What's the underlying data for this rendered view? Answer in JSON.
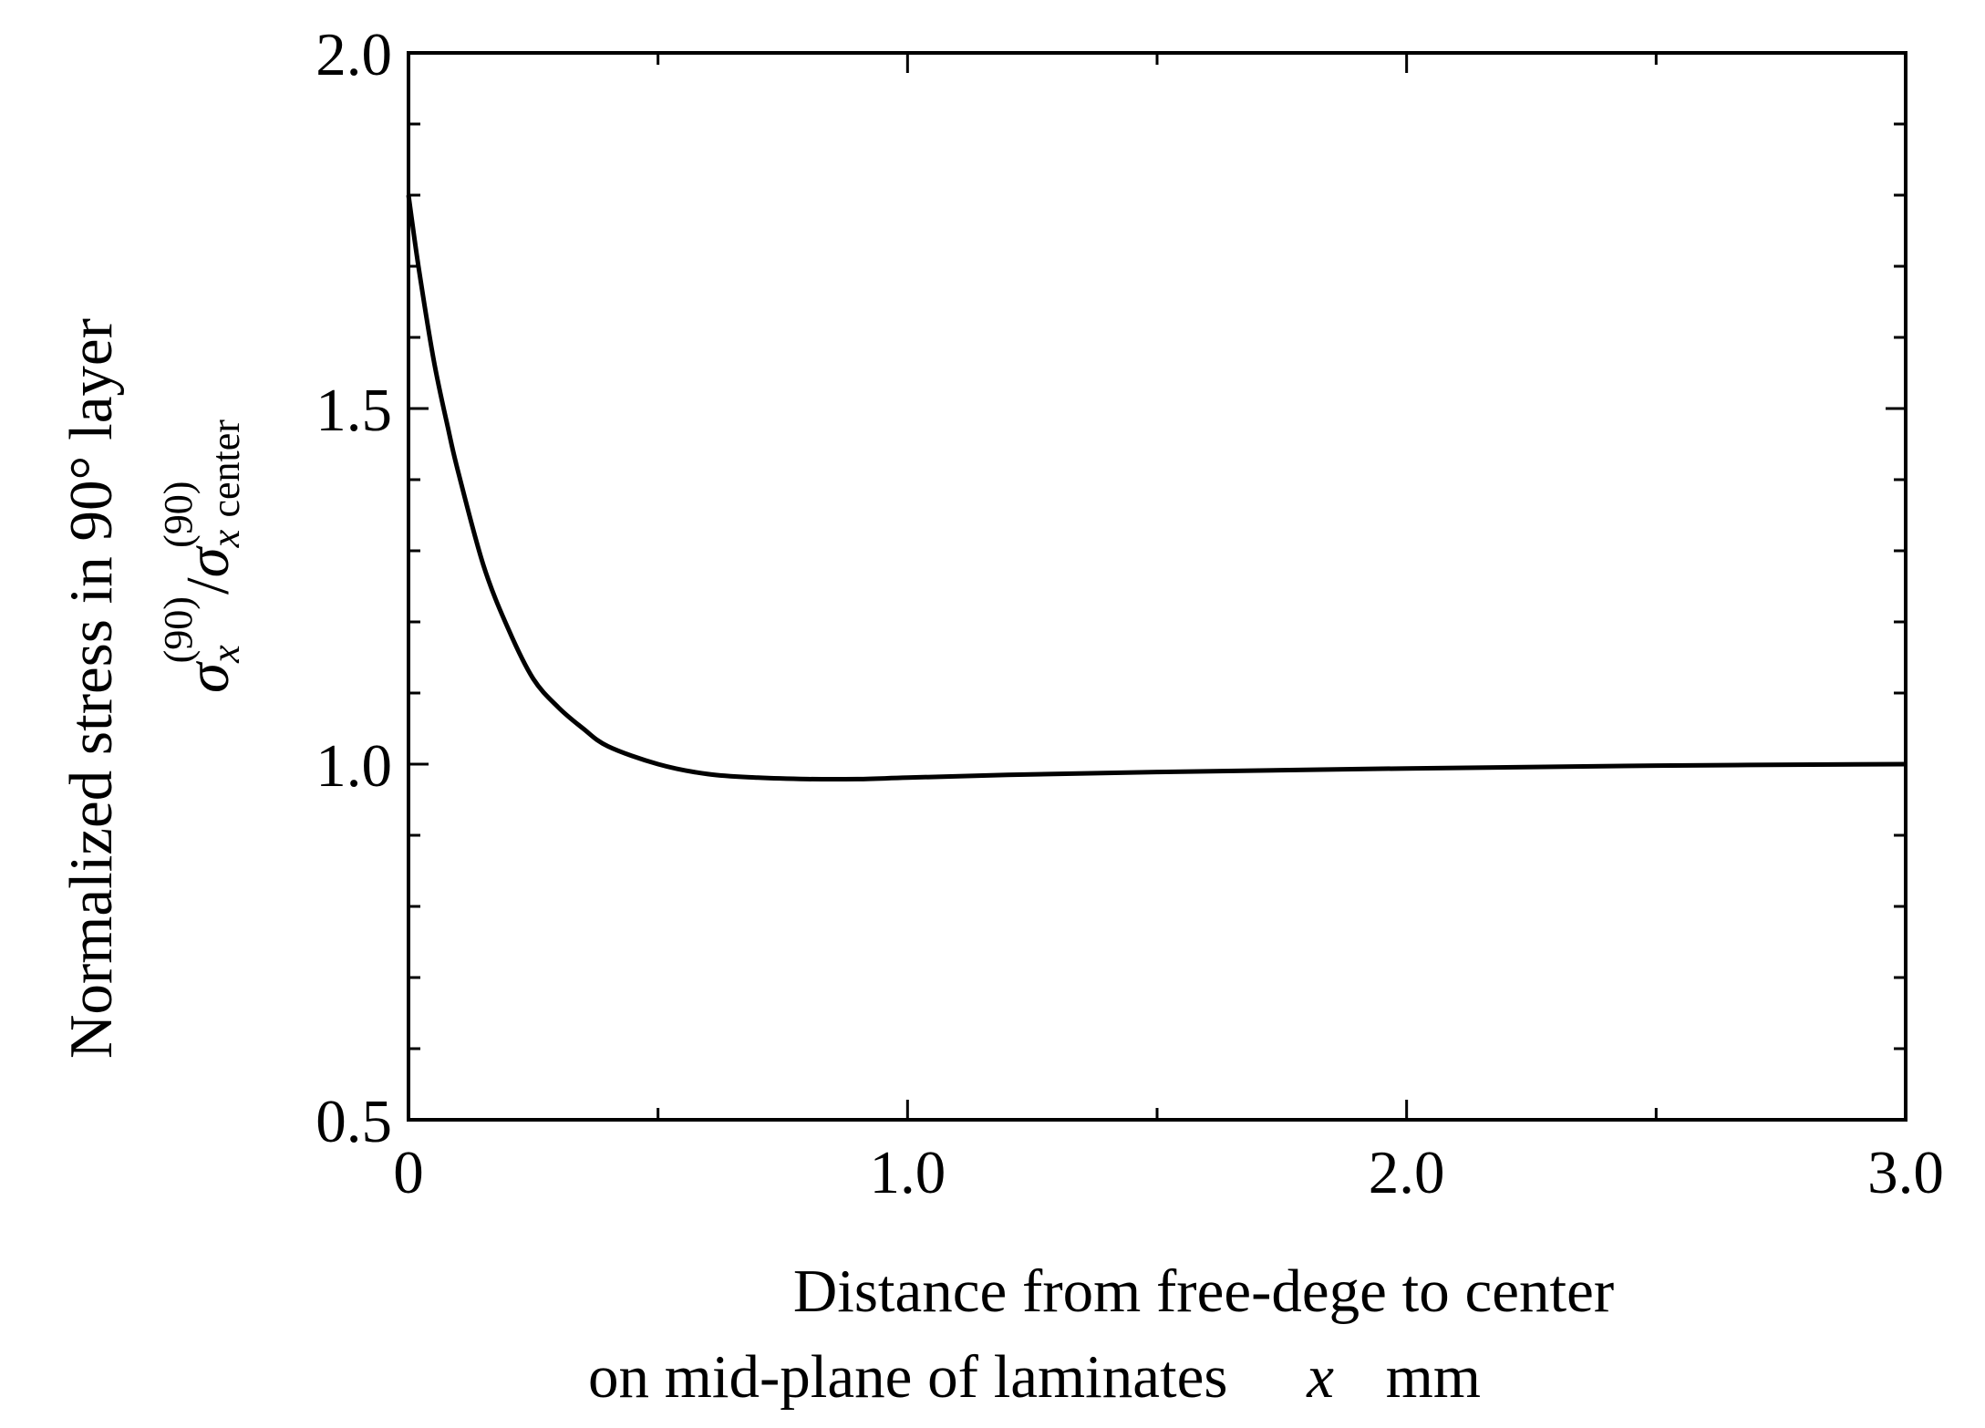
{
  "chart_data": {
    "type": "line",
    "xlim": [
      0,
      3.0
    ],
    "ylim": [
      0.5,
      2.0
    ],
    "x_ticks": [
      {
        "value": 0,
        "label": "0"
      },
      {
        "value": 1.0,
        "label": "1.0"
      },
      {
        "value": 2.0,
        "label": "2.0"
      },
      {
        "value": 3.0,
        "label": "3.0"
      }
    ],
    "x_minor_ticks": [
      0.5,
      1.5,
      2.5
    ],
    "y_ticks": [
      {
        "value": 0.5,
        "label": "0.5"
      },
      {
        "value": 1.0,
        "label": "1.0"
      },
      {
        "value": 1.5,
        "label": "1.5"
      },
      {
        "value": 2.0,
        "label": "2.0"
      }
    ],
    "y_minor_step": 0.1,
    "grid": false,
    "xlabel": {
      "line1": "Distance from free-dege to center",
      "line2_text": "on mid-plane of laminates",
      "line2_var": "x",
      "line2_unit": "mm"
    },
    "ylabel": {
      "line1": "Normalized stress in 90° layer",
      "sigma": "σ",
      "var": "x",
      "sup": "(90)",
      "slash": "/",
      "sub_center": "center"
    },
    "series": [
      {
        "color": "#000000",
        "x": [
          0,
          0.02,
          0.05,
          0.08,
          0.1,
          0.15,
          0.2,
          0.25,
          0.3,
          0.35,
          0.4,
          0.5,
          0.6,
          0.7,
          0.8,
          0.9,
          1.0,
          1.2,
          1.5,
          2.0,
          2.5,
          3.0
        ],
        "y": [
          1.8,
          1.7,
          1.57,
          1.47,
          1.41,
          1.28,
          1.19,
          1.12,
          1.08,
          1.05,
          1.025,
          1.0,
          0.986,
          0.981,
          0.979,
          0.979,
          0.981,
          0.985,
          0.989,
          0.994,
          0.998,
          1.0
        ]
      }
    ]
  }
}
